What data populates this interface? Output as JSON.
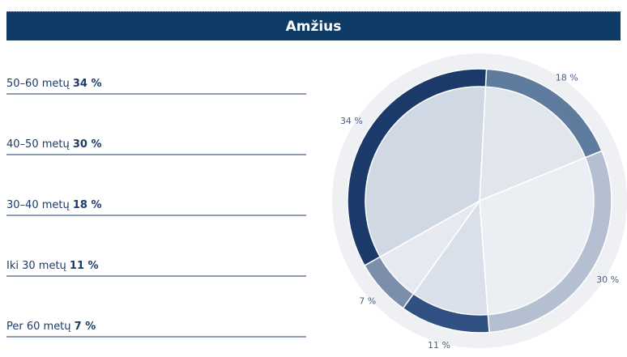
{
  "chart_data": {
    "type": "pie",
    "title": "Amžius",
    "categories": [
      "50–60 metų",
      "40–50 metų",
      "30–40 metų",
      "Iki 30 metų",
      "Per 60 metų"
    ],
    "values": [
      34,
      30,
      18,
      11,
      7
    ],
    "value_labels": [
      "34 %",
      "30 %",
      "18 %",
      "11 %",
      "7 %"
    ],
    "colors": [
      "#1c3a69",
      "#b4c0d1",
      "#5f7b9e",
      "#2f5081",
      "#7b8eab"
    ],
    "inner_colors": [
      "#d0d8e3",
      "#ebeef3",
      "#e1e6ed",
      "#dae0e9",
      "#e6e9ef"
    ]
  }
}
